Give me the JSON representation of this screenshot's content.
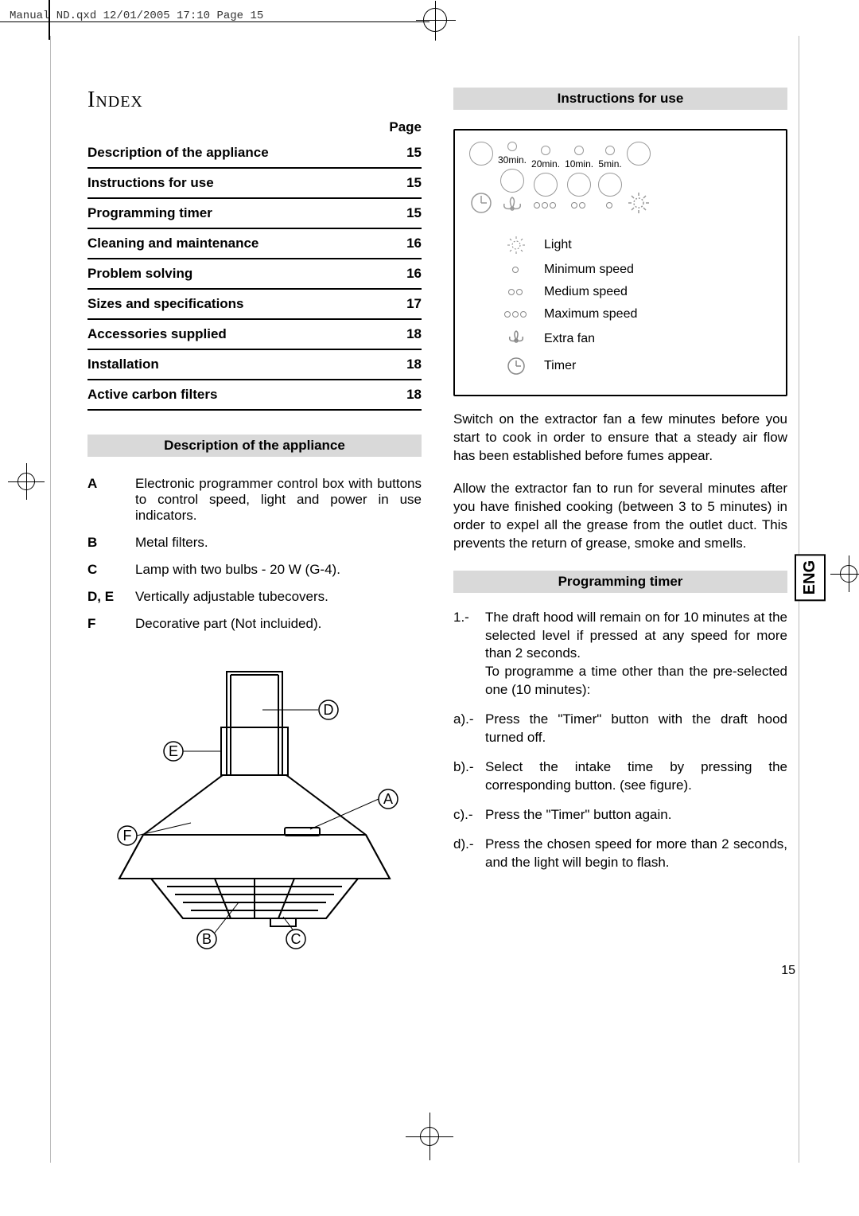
{
  "slug": "Manual ND.qxd  12/01/2005  17:10  Page 15",
  "page_number": "15",
  "language_tab": "ENG",
  "index": {
    "title": "Index",
    "page_header": "Page",
    "rows": [
      {
        "label": "Description of the appliance",
        "page": "15"
      },
      {
        "label": "Instructions for use",
        "page": "15"
      },
      {
        "label": "Programming timer",
        "page": "15"
      },
      {
        "label": "Cleaning and maintenance",
        "page": "16"
      },
      {
        "label": "Problem solving",
        "page": "16"
      },
      {
        "label": "Sizes and specifications",
        "page": "17"
      },
      {
        "label": "Accessories supplied",
        "page": "18"
      },
      {
        "label": "Installation",
        "page": "18"
      },
      {
        "label": "Active carbon filters",
        "page": "18"
      }
    ]
  },
  "description": {
    "header": "Description  of the appliance",
    "items": [
      {
        "key": "A",
        "text": "Electronic programmer control box with buttons to control speed, light and power in use indicators."
      },
      {
        "key": "B",
        "text": "Metal filters."
      },
      {
        "key": "C",
        "text": "Lamp with two bulbs - 20 W (G-4)."
      },
      {
        "key": "D, E",
        "text": "Vertically adjustable tubecovers."
      },
      {
        "key": "F",
        "text": "Decorative part (Not incluided)."
      }
    ],
    "diagram_labels": {
      "a": "A",
      "b": "B",
      "c": "C",
      "d": "D",
      "e": "E",
      "f": "F"
    }
  },
  "instructions": {
    "header": "Instructions for use",
    "panel": {
      "time_labels": [
        "30min.",
        "20min.",
        "10min.",
        "5min."
      ]
    },
    "legend": [
      {
        "symbol": "light",
        "label": "Light"
      },
      {
        "symbol": "dot1",
        "label": "Minimum speed"
      },
      {
        "symbol": "dot2",
        "label": "Medium speed"
      },
      {
        "symbol": "dot3",
        "label": "Maximum speed"
      },
      {
        "symbol": "fan",
        "label": "Extra fan"
      },
      {
        "symbol": "timer",
        "label": "Timer"
      }
    ],
    "para1": "Switch on the extractor fan a few minutes before you start to cook in order to ensure that a steady air flow has been established before fumes appear.",
    "para2": "Allow the extractor fan to run for several minutes after you have finished cooking (between 3 to 5 minutes) in order to expel all the grease from the outlet duct. This prevents the return of grease, smoke and smells."
  },
  "timer": {
    "header": "Programming timer",
    "item1_num": "1.-",
    "item1_a": "The draft hood will remain on for 10 minutes at the selected level if pressed at any speed for more than 2 seconds.",
    "item1_b": "To programme a time other than the pre-selected one (10 minutes):",
    "steps": [
      {
        "num": "a).-",
        "text": "Press the \"Timer\" button with the draft hood turned off."
      },
      {
        "num": "b).-",
        "text": "Select the intake time by pressing the corresponding button. (see figure)."
      },
      {
        "num": "c).-",
        "text": "Press the \"Timer\" button again."
      },
      {
        "num": "d).-",
        "text": "Press the chosen speed for more than 2 seconds, and the light will begin to flash."
      }
    ]
  }
}
